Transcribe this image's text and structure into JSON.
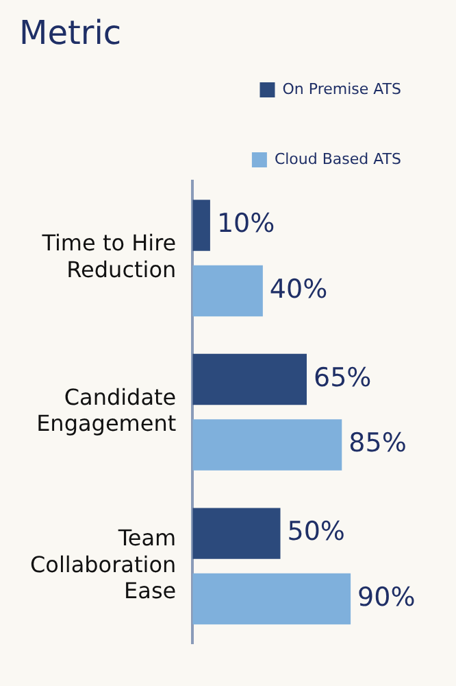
{
  "chart_data": {
    "type": "bar",
    "orientation": "horizontal",
    "title": "Metric",
    "categories": [
      "Time to Hire Reduction",
      "Candidate Engagement",
      "Team Collaboration Ease"
    ],
    "series": [
      {
        "name": "On Premise ATS",
        "color": "#2c4a7c",
        "values": [
          10,
          65,
          50
        ],
        "value_labels": [
          "10%",
          "65%",
          "50%"
        ]
      },
      {
        "name": "Cloud Based ATS",
        "color": "#7fb0dc",
        "values": [
          40,
          85,
          90
        ],
        "value_labels": [
          "40%",
          "85%",
          "90%"
        ]
      }
    ],
    "tick_labels": "y",
    "grid": false,
    "legend": "top right"
  }
}
